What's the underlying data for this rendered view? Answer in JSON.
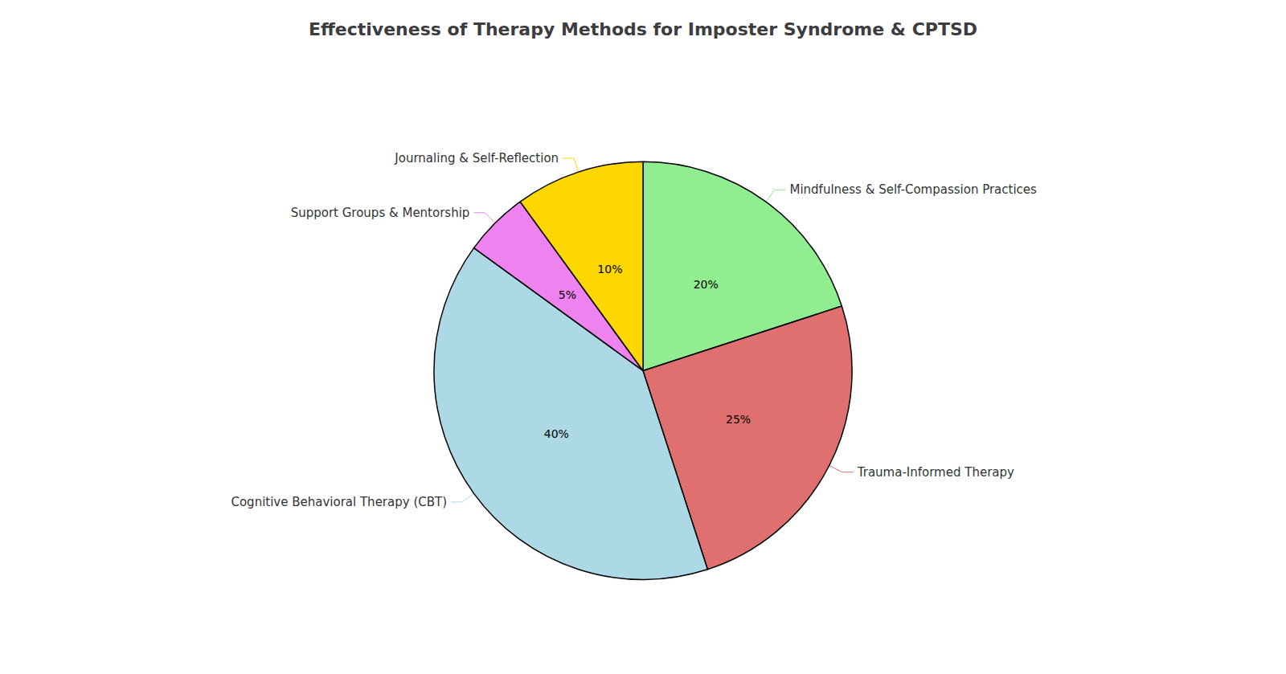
{
  "chart_data": {
    "type": "pie",
    "title": "Effectiveness of Therapy Methods for Imposter Syndrome & CPTSD",
    "categories": [
      "Mindfulness & Self-Compassion Practices",
      "Trauma-Informed Therapy",
      "Cognitive Behavioral Therapy (CBT)",
      "Support Groups & Mentorship",
      "Journaling & Self-Reflection"
    ],
    "values": [
      20,
      25,
      40,
      5,
      10
    ],
    "value_labels": [
      "20%",
      "25%",
      "40%",
      "5%",
      "10%"
    ],
    "colors": [
      "#90EE90",
      "#E07070",
      "#ADD8E6",
      "#EE82EE",
      "#FFD700"
    ],
    "data_labels": true
  }
}
